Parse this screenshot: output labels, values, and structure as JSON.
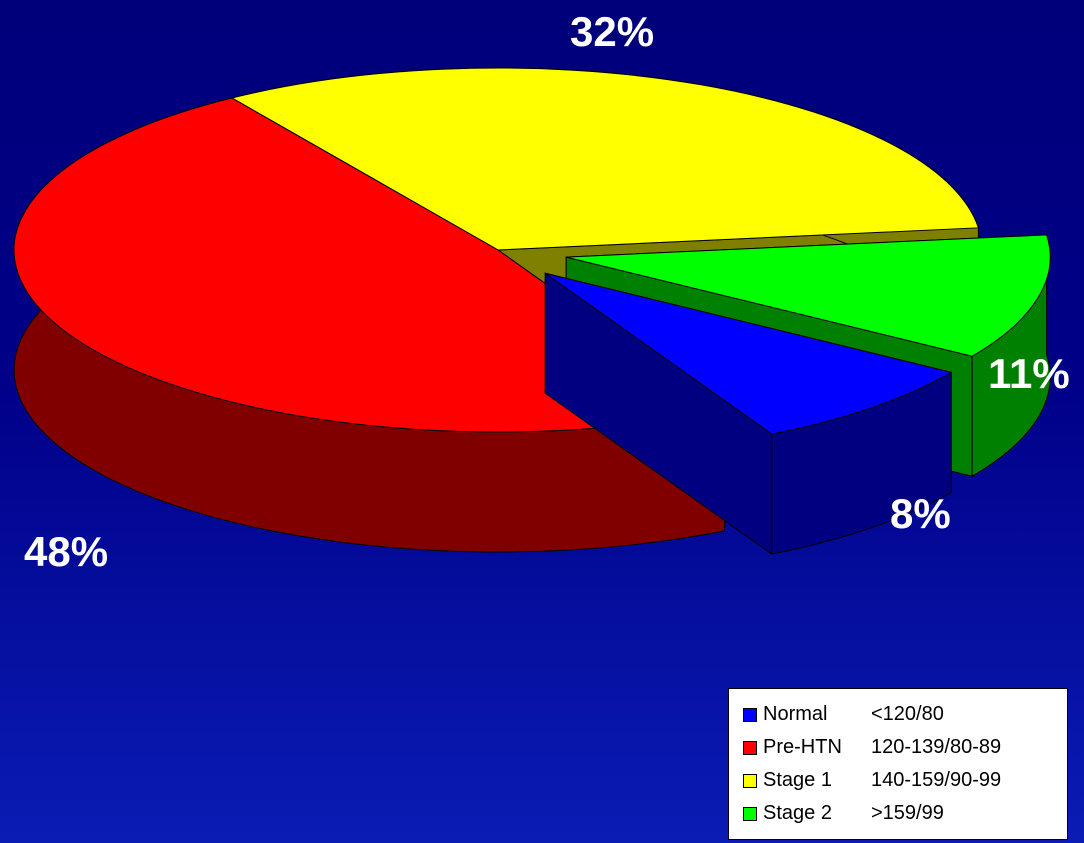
{
  "chart_data": {
    "type": "pie",
    "title": "",
    "style": "3d-exploded",
    "series": [
      {
        "name": "Normal",
        "range": "<120/80",
        "value": 8,
        "label": "8%",
        "color": "#0000ff"
      },
      {
        "name": "Pre-HTN",
        "range": "120-139/80-89",
        "value": 48,
        "label": "48%",
        "color": "#ff0000"
      },
      {
        "name": "Stage 1",
        "range": "140-159/90-99",
        "value": 32,
        "label": "32%",
        "color": "#ffff00"
      },
      {
        "name": "Stage 2",
        "range": ">159/99",
        "value": 11,
        "label": "11%",
        "color": "#00ff00"
      }
    ],
    "legend_position": "bottom-right"
  }
}
